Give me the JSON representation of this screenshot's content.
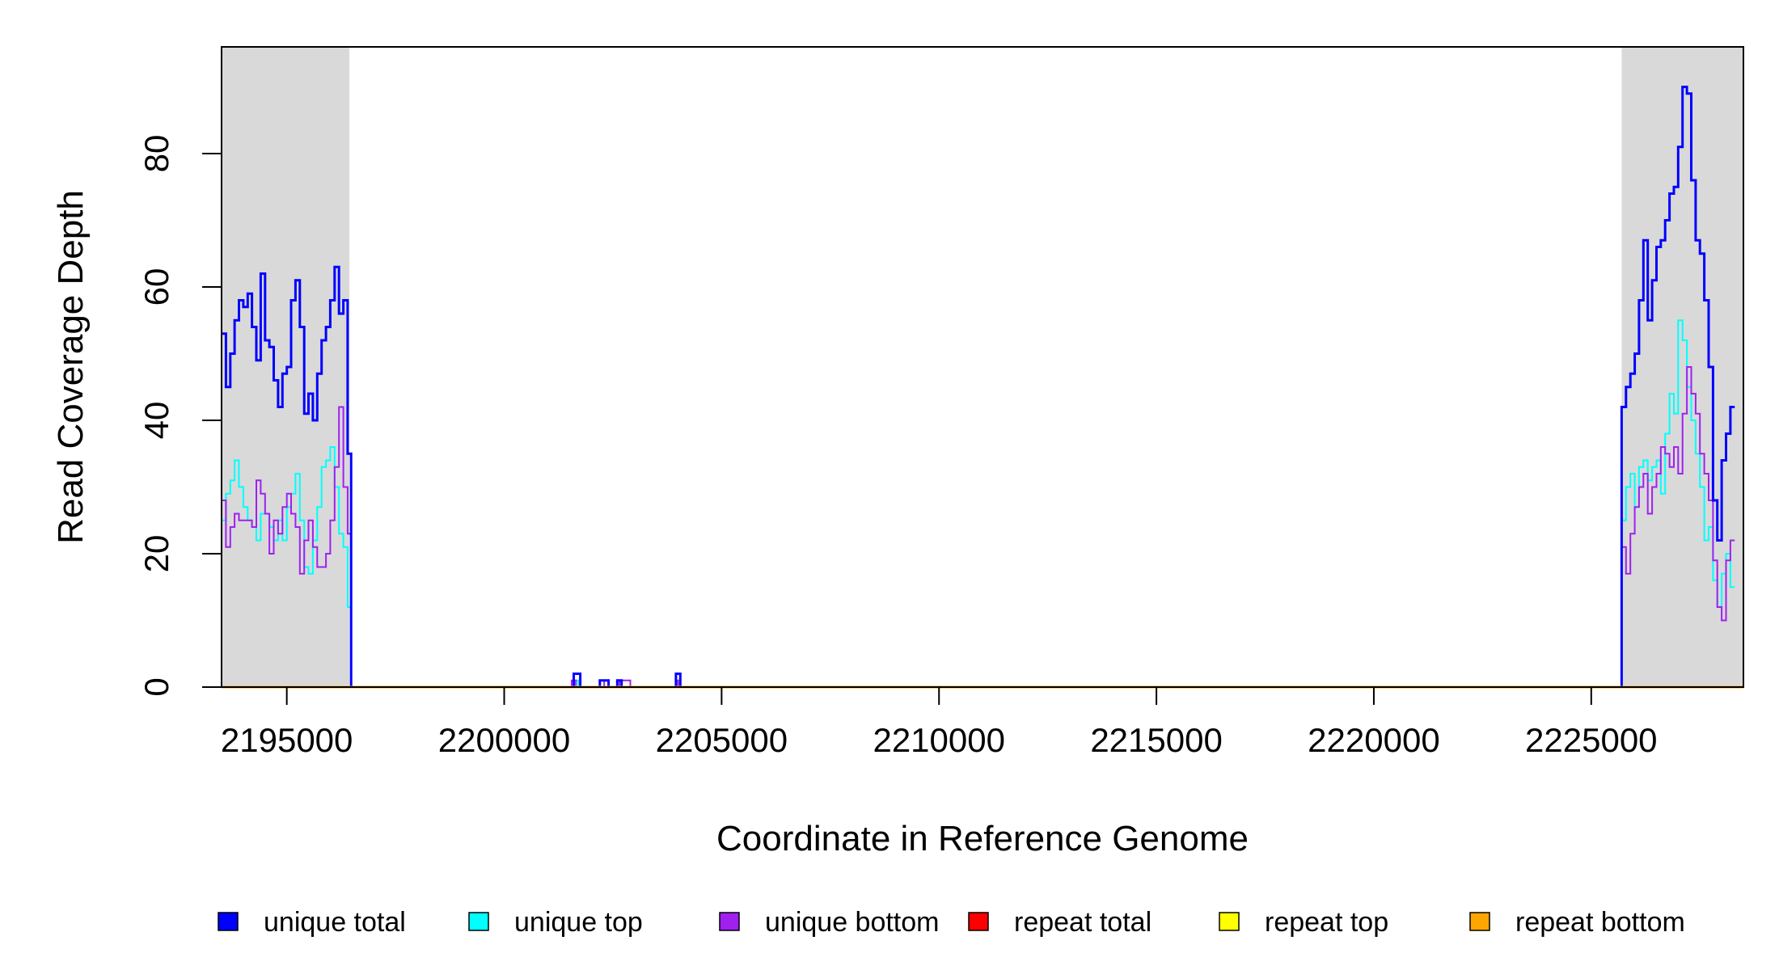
{
  "chart_data": {
    "type": "line",
    "xlabel": "Coordinate in Reference Genome",
    "ylabel": "Read Coverage Depth",
    "xlim": [
      2193500,
      2228500
    ],
    "ylim": [
      0,
      96
    ],
    "x_ticks": [
      2195000,
      2200000,
      2205000,
      2210000,
      2215000,
      2220000,
      2225000
    ],
    "x_tick_labels": [
      "2195000",
      "2200000",
      "2205000",
      "2210000",
      "2215000",
      "2220000",
      "2225000"
    ],
    "y_ticks": [
      0,
      20,
      40,
      60,
      80
    ],
    "y_tick_labels": [
      "0",
      "20",
      "40",
      "60",
      "80"
    ],
    "shaded_regions": [
      [
        2193500,
        2196440
      ],
      [
        2225700,
        2228500
      ]
    ],
    "shade_color": "#d9d9d9",
    "grid": false,
    "legend_position": "bottom",
    "series": [
      {
        "name": "unique total",
        "color": "#0000ff",
        "line_width": 3,
        "points": [
          [
            2193500,
            53
          ],
          [
            2193600,
            45
          ],
          [
            2193700,
            50
          ],
          [
            2193800,
            55
          ],
          [
            2193900,
            58
          ],
          [
            2194000,
            57
          ],
          [
            2194100,
            59
          ],
          [
            2194200,
            54
          ],
          [
            2194300,
            49
          ],
          [
            2194400,
            62
          ],
          [
            2194500,
            52
          ],
          [
            2194600,
            51
          ],
          [
            2194700,
            46
          ],
          [
            2194800,
            42
          ],
          [
            2194900,
            47
          ],
          [
            2195000,
            48
          ],
          [
            2195100,
            58
          ],
          [
            2195200,
            61
          ],
          [
            2195300,
            54
          ],
          [
            2195400,
            41
          ],
          [
            2195500,
            44
          ],
          [
            2195600,
            40
          ],
          [
            2195700,
            47
          ],
          [
            2195800,
            52
          ],
          [
            2195900,
            54
          ],
          [
            2196000,
            58
          ],
          [
            2196100,
            63
          ],
          [
            2196200,
            56
          ],
          [
            2196300,
            58
          ],
          [
            2196400,
            35
          ],
          [
            2196480,
            0
          ],
          [
            2201500,
            0
          ],
          [
            2201600,
            2
          ],
          [
            2201750,
            0
          ],
          [
            2202200,
            1
          ],
          [
            2202400,
            0
          ],
          [
            2202600,
            1
          ],
          [
            2202700,
            0
          ],
          [
            2203900,
            0
          ],
          [
            2203950,
            2
          ],
          [
            2204050,
            0
          ],
          [
            2225650,
            0
          ],
          [
            2225700,
            42
          ],
          [
            2225800,
            45
          ],
          [
            2225900,
            47
          ],
          [
            2226000,
            50
          ],
          [
            2226100,
            58
          ],
          [
            2226200,
            67
          ],
          [
            2226300,
            55
          ],
          [
            2226400,
            61
          ],
          [
            2226500,
            66
          ],
          [
            2226600,
            67
          ],
          [
            2226700,
            70
          ],
          [
            2226800,
            74
          ],
          [
            2226900,
            75
          ],
          [
            2227000,
            81
          ],
          [
            2227100,
            90
          ],
          [
            2227200,
            89
          ],
          [
            2227300,
            76
          ],
          [
            2227400,
            67
          ],
          [
            2227500,
            65
          ],
          [
            2227600,
            58
          ],
          [
            2227700,
            48
          ],
          [
            2227800,
            28
          ],
          [
            2227900,
            22
          ],
          [
            2228000,
            34
          ],
          [
            2228100,
            38
          ],
          [
            2228200,
            42
          ]
        ]
      },
      {
        "name": "unique top",
        "color": "#00ffff",
        "line_width": 2,
        "points": [
          [
            2193500,
            25
          ],
          [
            2193600,
            29
          ],
          [
            2193700,
            31
          ],
          [
            2193800,
            34
          ],
          [
            2193900,
            30
          ],
          [
            2194000,
            27
          ],
          [
            2194100,
            25
          ],
          [
            2194200,
            24
          ],
          [
            2194300,
            22
          ],
          [
            2194400,
            26
          ],
          [
            2194500,
            26
          ],
          [
            2194600,
            24
          ],
          [
            2194700,
            22
          ],
          [
            2194800,
            25
          ],
          [
            2194900,
            22
          ],
          [
            2195000,
            27
          ],
          [
            2195100,
            29
          ],
          [
            2195200,
            32
          ],
          [
            2195300,
            25
          ],
          [
            2195400,
            18
          ],
          [
            2195500,
            17
          ],
          [
            2195600,
            22
          ],
          [
            2195700,
            27
          ],
          [
            2195800,
            33
          ],
          [
            2195900,
            34
          ],
          [
            2196000,
            36
          ],
          [
            2196100,
            30
          ],
          [
            2196200,
            23
          ],
          [
            2196300,
            21
          ],
          [
            2196400,
            12
          ],
          [
            2196480,
            0
          ],
          [
            2201550,
            0
          ],
          [
            2201600,
            1
          ],
          [
            2201700,
            0
          ],
          [
            2202150,
            0
          ],
          [
            2202200,
            1
          ],
          [
            2202400,
            0
          ],
          [
            2225650,
            0
          ],
          [
            2225700,
            25
          ],
          [
            2225800,
            30
          ],
          [
            2225900,
            32
          ],
          [
            2226000,
            27
          ],
          [
            2226100,
            33
          ],
          [
            2226200,
            34
          ],
          [
            2226300,
            31
          ],
          [
            2226400,
            33
          ],
          [
            2226500,
            34
          ],
          [
            2226600,
            29
          ],
          [
            2226700,
            38
          ],
          [
            2226800,
            44
          ],
          [
            2226900,
            41
          ],
          [
            2227000,
            55
          ],
          [
            2227100,
            52
          ],
          [
            2227200,
            45
          ],
          [
            2227300,
            40
          ],
          [
            2227400,
            35
          ],
          [
            2227500,
            30
          ],
          [
            2227600,
            22
          ],
          [
            2227700,
            24
          ],
          [
            2227800,
            16
          ],
          [
            2227900,
            12
          ],
          [
            2228000,
            17
          ],
          [
            2228100,
            20
          ],
          [
            2228200,
            15
          ]
        ]
      },
      {
        "name": "unique bottom",
        "color": "#a020f0",
        "line_width": 2,
        "points": [
          [
            2193500,
            28
          ],
          [
            2193600,
            21
          ],
          [
            2193700,
            24
          ],
          [
            2193800,
            26
          ],
          [
            2193900,
            25
          ],
          [
            2194000,
            25
          ],
          [
            2194100,
            25
          ],
          [
            2194200,
            24
          ],
          [
            2194300,
            31
          ],
          [
            2194400,
            29
          ],
          [
            2194500,
            26
          ],
          [
            2194600,
            20
          ],
          [
            2194700,
            25
          ],
          [
            2194800,
            23
          ],
          [
            2194900,
            27
          ],
          [
            2195000,
            29
          ],
          [
            2195100,
            26
          ],
          [
            2195200,
            24
          ],
          [
            2195300,
            17
          ],
          [
            2195400,
            22
          ],
          [
            2195500,
            25
          ],
          [
            2195600,
            21
          ],
          [
            2195700,
            18
          ],
          [
            2195800,
            18
          ],
          [
            2195900,
            20
          ],
          [
            2196000,
            25
          ],
          [
            2196100,
            33
          ],
          [
            2196200,
            42
          ],
          [
            2196300,
            30
          ],
          [
            2196400,
            23
          ],
          [
            2196480,
            0
          ],
          [
            2201500,
            0
          ],
          [
            2201550,
            1
          ],
          [
            2201650,
            0
          ],
          [
            2202100,
            0
          ],
          [
            2202200,
            1
          ],
          [
            2202300,
            0
          ],
          [
            2202600,
            0
          ],
          [
            2202650,
            1
          ],
          [
            2202900,
            0
          ],
          [
            2203900,
            0
          ],
          [
            2203950,
            1
          ],
          [
            2204000,
            0
          ],
          [
            2225650,
            0
          ],
          [
            2225700,
            21
          ],
          [
            2225800,
            17
          ],
          [
            2225900,
            23
          ],
          [
            2226000,
            27
          ],
          [
            2226100,
            30
          ],
          [
            2226200,
            32
          ],
          [
            2226300,
            26
          ],
          [
            2226400,
            30
          ],
          [
            2226500,
            32
          ],
          [
            2226600,
            36
          ],
          [
            2226700,
            35
          ],
          [
            2226800,
            33
          ],
          [
            2226900,
            36
          ],
          [
            2227000,
            32
          ],
          [
            2227100,
            41
          ],
          [
            2227200,
            48
          ],
          [
            2227300,
            44
          ],
          [
            2227400,
            41
          ],
          [
            2227500,
            35
          ],
          [
            2227600,
            32
          ],
          [
            2227700,
            28
          ],
          [
            2227800,
            19
          ],
          [
            2227900,
            12
          ],
          [
            2228000,
            10
          ],
          [
            2228100,
            19
          ],
          [
            2228200,
            22
          ]
        ]
      },
      {
        "name": "repeat total",
        "color": "#ff0000",
        "line_width": 2,
        "points": [
          [
            2193500,
            0
          ],
          [
            2228500,
            0
          ]
        ]
      },
      {
        "name": "repeat top",
        "color": "#ffff00",
        "line_width": 2,
        "points": [
          [
            2193500,
            0
          ],
          [
            2228500,
            0
          ]
        ]
      },
      {
        "name": "repeat bottom",
        "color": "#ffa500",
        "line_width": 3,
        "points": [
          [
            2193500,
            0
          ],
          [
            2228500,
            0
          ]
        ]
      }
    ]
  }
}
